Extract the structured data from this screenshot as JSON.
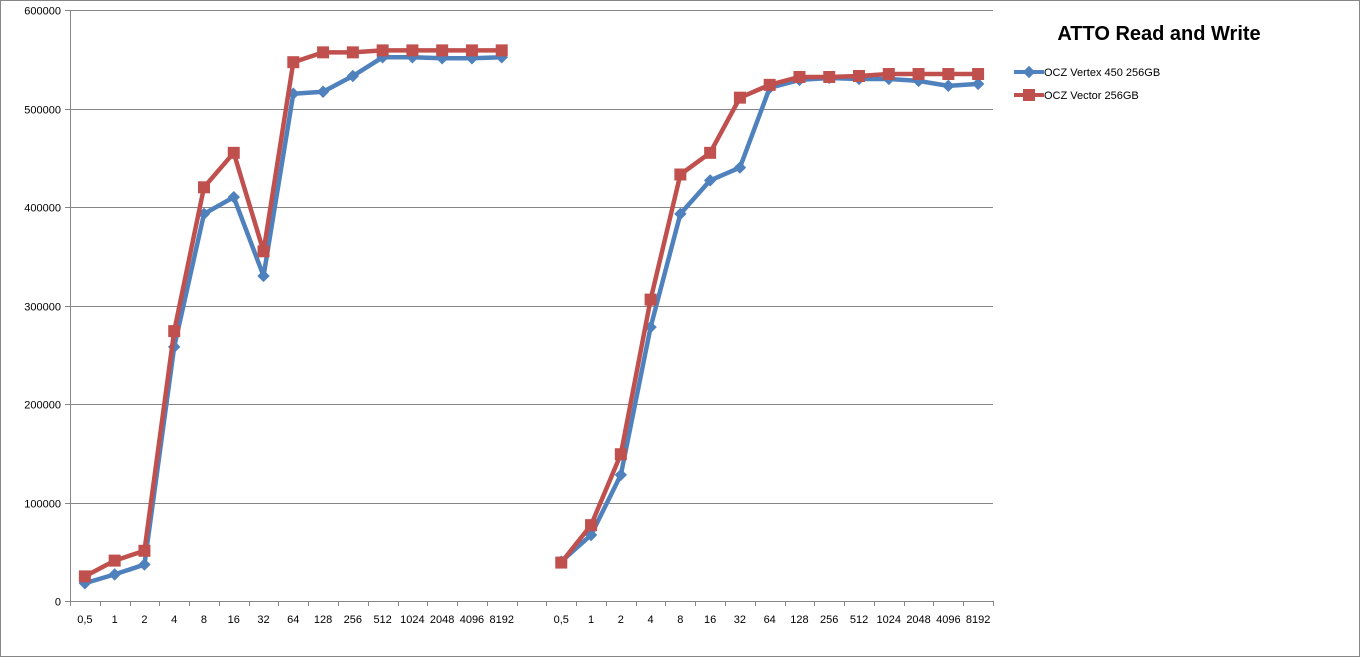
{
  "chart_data": {
    "type": "line",
    "title": "ATTO Read and Write",
    "xlabel": "",
    "ylabel": "",
    "ylim": [
      0,
      600000
    ],
    "yticks": [
      "0",
      "100000",
      "200000",
      "300000",
      "400000",
      "500000",
      "600000"
    ],
    "categories": [
      "0,5",
      "1",
      "2",
      "4",
      "8",
      "16",
      "32",
      "64",
      "128",
      "256",
      "512",
      "1024",
      "2048",
      "4096",
      "8192",
      "",
      "0,5",
      "1",
      "2",
      "4",
      "8",
      "16",
      "32",
      "64",
      "128",
      "256",
      "512",
      "1024",
      "2048",
      "4096",
      "8192"
    ],
    "grid": true,
    "legend_position": "right",
    "series": [
      {
        "name": "OCZ Vertex 450 256GB",
        "color": "#4F81BD",
        "marker": "diamond",
        "values": [
          18000,
          27000,
          37000,
          258000,
          393000,
          410000,
          330000,
          515000,
          517000,
          533000,
          552000,
          552000,
          551000,
          551000,
          552000,
          null,
          40000,
          67000,
          128000,
          278000,
          393000,
          427000,
          440000,
          521000,
          529000,
          531000,
          530000,
          530000,
          528000,
          523000,
          525000
        ]
      },
      {
        "name": "OCZ Vector 256GB",
        "color": "#C0504D",
        "marker": "square",
        "values": [
          25000,
          41000,
          51000,
          274000,
          420000,
          455000,
          355000,
          547000,
          557000,
          557000,
          559000,
          559000,
          559000,
          559000,
          559000,
          null,
          39000,
          77000,
          149000,
          306000,
          433000,
          455000,
          511000,
          524000,
          532000,
          532000,
          533000,
          535000,
          535000,
          535000,
          535000
        ]
      }
    ]
  }
}
